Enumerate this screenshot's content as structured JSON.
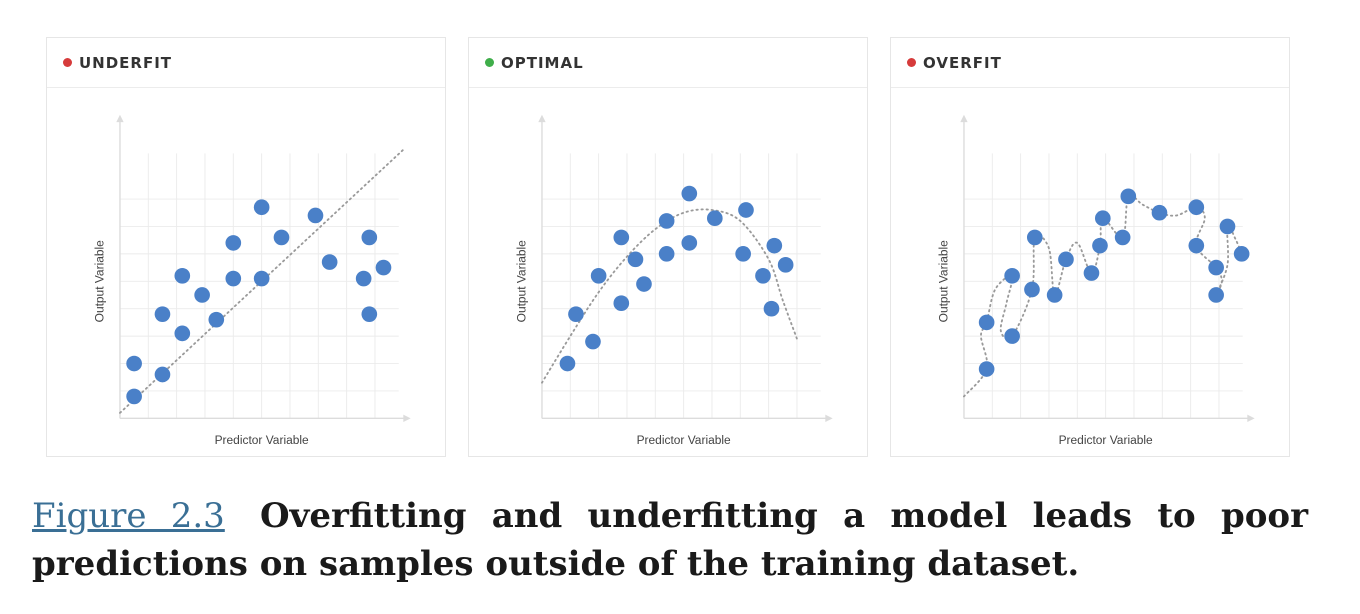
{
  "colors": {
    "point": "#4a80c8",
    "grid": "#ebebeb",
    "axis": "#dcdcdc",
    "fit_line": "#9a9a9a",
    "bad_dot": "#d63b3b",
    "good_dot": "#3fae4a",
    "caption_link": "#3a6f95"
  },
  "caption": {
    "figure_label": "Figure 2.3",
    "text": "Overfitting and underfitting a model leads to poor predictions on samples outside of the training dataset."
  },
  "chart_data": [
    {
      "type": "scatter",
      "title": "UNDERFIT",
      "status": "bad",
      "xlabel": "Predictor Variable",
      "ylabel": "Output Variable",
      "xlim": [
        0,
        10
      ],
      "ylim": [
        0,
        10
      ],
      "grid": true,
      "points": [
        {
          "x": 0.5,
          "y": 0.8
        },
        {
          "x": 0.5,
          "y": 2.0
        },
        {
          "x": 1.5,
          "y": 1.6
        },
        {
          "x": 1.5,
          "y": 3.8
        },
        {
          "x": 2.2,
          "y": 3.1
        },
        {
          "x": 2.2,
          "y": 5.2
        },
        {
          "x": 2.9,
          "y": 4.5
        },
        {
          "x": 3.4,
          "y": 3.6
        },
        {
          "x": 4.0,
          "y": 6.4
        },
        {
          "x": 4.0,
          "y": 5.1
        },
        {
          "x": 5.0,
          "y": 7.7
        },
        {
          "x": 5.0,
          "y": 5.1
        },
        {
          "x": 5.7,
          "y": 6.6
        },
        {
          "x": 6.9,
          "y": 7.4
        },
        {
          "x": 7.4,
          "y": 5.7
        },
        {
          "x": 8.6,
          "y": 5.1
        },
        {
          "x": 8.8,
          "y": 6.6
        },
        {
          "x": 8.8,
          "y": 3.8
        },
        {
          "x": 9.3,
          "y": 5.5
        }
      ],
      "fit": [
        [
          0,
          0.2
        ],
        [
          10,
          9.8
        ]
      ]
    },
    {
      "type": "scatter",
      "title": "OPTIMAL",
      "status": "good",
      "xlabel": "Predictor Variable",
      "ylabel": "Output Variable",
      "xlim": [
        0,
        10
      ],
      "ylim": [
        0,
        10
      ],
      "grid": true,
      "points": [
        {
          "x": 0.9,
          "y": 2.0
        },
        {
          "x": 1.2,
          "y": 3.8
        },
        {
          "x": 1.8,
          "y": 2.8
        },
        {
          "x": 2.0,
          "y": 5.2
        },
        {
          "x": 2.8,
          "y": 4.2
        },
        {
          "x": 2.8,
          "y": 6.6
        },
        {
          "x": 3.3,
          "y": 5.8
        },
        {
          "x": 3.6,
          "y": 4.9
        },
        {
          "x": 4.4,
          "y": 7.2
        },
        {
          "x": 4.4,
          "y": 6.0
        },
        {
          "x": 5.2,
          "y": 6.4
        },
        {
          "x": 5.2,
          "y": 8.2
        },
        {
          "x": 6.1,
          "y": 7.3
        },
        {
          "x": 7.1,
          "y": 6.0
        },
        {
          "x": 7.2,
          "y": 7.6
        },
        {
          "x": 7.8,
          "y": 5.2
        },
        {
          "x": 8.1,
          "y": 4.0
        },
        {
          "x": 8.2,
          "y": 6.3
        },
        {
          "x": 8.6,
          "y": 5.6
        }
      ],
      "fit": [
        [
          0,
          1.3
        ],
        [
          1.0,
          3.0
        ],
        [
          2.0,
          4.6
        ],
        [
          3.0,
          5.9
        ],
        [
          4.0,
          6.9
        ],
        [
          5.0,
          7.5
        ],
        [
          6.0,
          7.6
        ],
        [
          7.0,
          7.2
        ],
        [
          8.0,
          5.8
        ],
        [
          8.5,
          4.3
        ],
        [
          9.0,
          2.9
        ]
      ]
    },
    {
      "type": "scatter",
      "title": "OVERFIT",
      "status": "bad",
      "xlabel": "Predictor Variable",
      "ylabel": "Output Variable",
      "xlim": [
        0,
        10
      ],
      "ylim": [
        0,
        10
      ],
      "grid": true,
      "points": [
        {
          "x": 0.8,
          "y": 1.8
        },
        {
          "x": 0.8,
          "y": 3.5
        },
        {
          "x": 1.7,
          "y": 3.0
        },
        {
          "x": 1.7,
          "y": 5.2
        },
        {
          "x": 2.4,
          "y": 4.7
        },
        {
          "x": 2.5,
          "y": 6.6
        },
        {
          "x": 3.2,
          "y": 4.5
        },
        {
          "x": 3.6,
          "y": 5.8
        },
        {
          "x": 4.5,
          "y": 5.3
        },
        {
          "x": 4.8,
          "y": 6.3
        },
        {
          "x": 4.9,
          "y": 7.3
        },
        {
          "x": 5.6,
          "y": 6.6
        },
        {
          "x": 5.8,
          "y": 8.1
        },
        {
          "x": 6.9,
          "y": 7.5
        },
        {
          "x": 8.2,
          "y": 7.7
        },
        {
          "x": 8.2,
          "y": 6.3
        },
        {
          "x": 8.9,
          "y": 5.5
        },
        {
          "x": 8.9,
          "y": 4.5
        },
        {
          "x": 9.3,
          "y": 7.0
        },
        {
          "x": 9.8,
          "y": 6.0
        }
      ],
      "fit": [
        [
          0,
          0.8
        ],
        [
          0.8,
          1.8
        ],
        [
          0.6,
          3.0
        ],
        [
          0.8,
          3.5
        ],
        [
          1.1,
          4.7
        ],
        [
          1.7,
          5.2
        ],
        [
          1.5,
          4.2
        ],
        [
          1.3,
          3.2
        ],
        [
          1.7,
          3.0
        ],
        [
          2.4,
          4.7
        ],
        [
          2.5,
          6.6
        ],
        [
          3.0,
          6.2
        ],
        [
          3.2,
          4.5
        ],
        [
          3.6,
          5.8
        ],
        [
          4.0,
          6.4
        ],
        [
          4.5,
          5.3
        ],
        [
          4.8,
          6.3
        ],
        [
          4.9,
          7.3
        ],
        [
          5.6,
          6.6
        ],
        [
          5.8,
          8.1
        ],
        [
          6.3,
          7.8
        ],
        [
          6.9,
          7.5
        ],
        [
          7.5,
          7.4
        ],
        [
          8.2,
          7.7
        ],
        [
          8.5,
          7.3
        ],
        [
          8.2,
          6.3
        ],
        [
          8.9,
          5.5
        ],
        [
          9.1,
          5.0
        ],
        [
          8.9,
          4.5
        ],
        [
          9.3,
          5.6
        ],
        [
          9.3,
          7.0
        ],
        [
          9.6,
          6.5
        ],
        [
          9.8,
          6.0
        ]
      ]
    }
  ]
}
